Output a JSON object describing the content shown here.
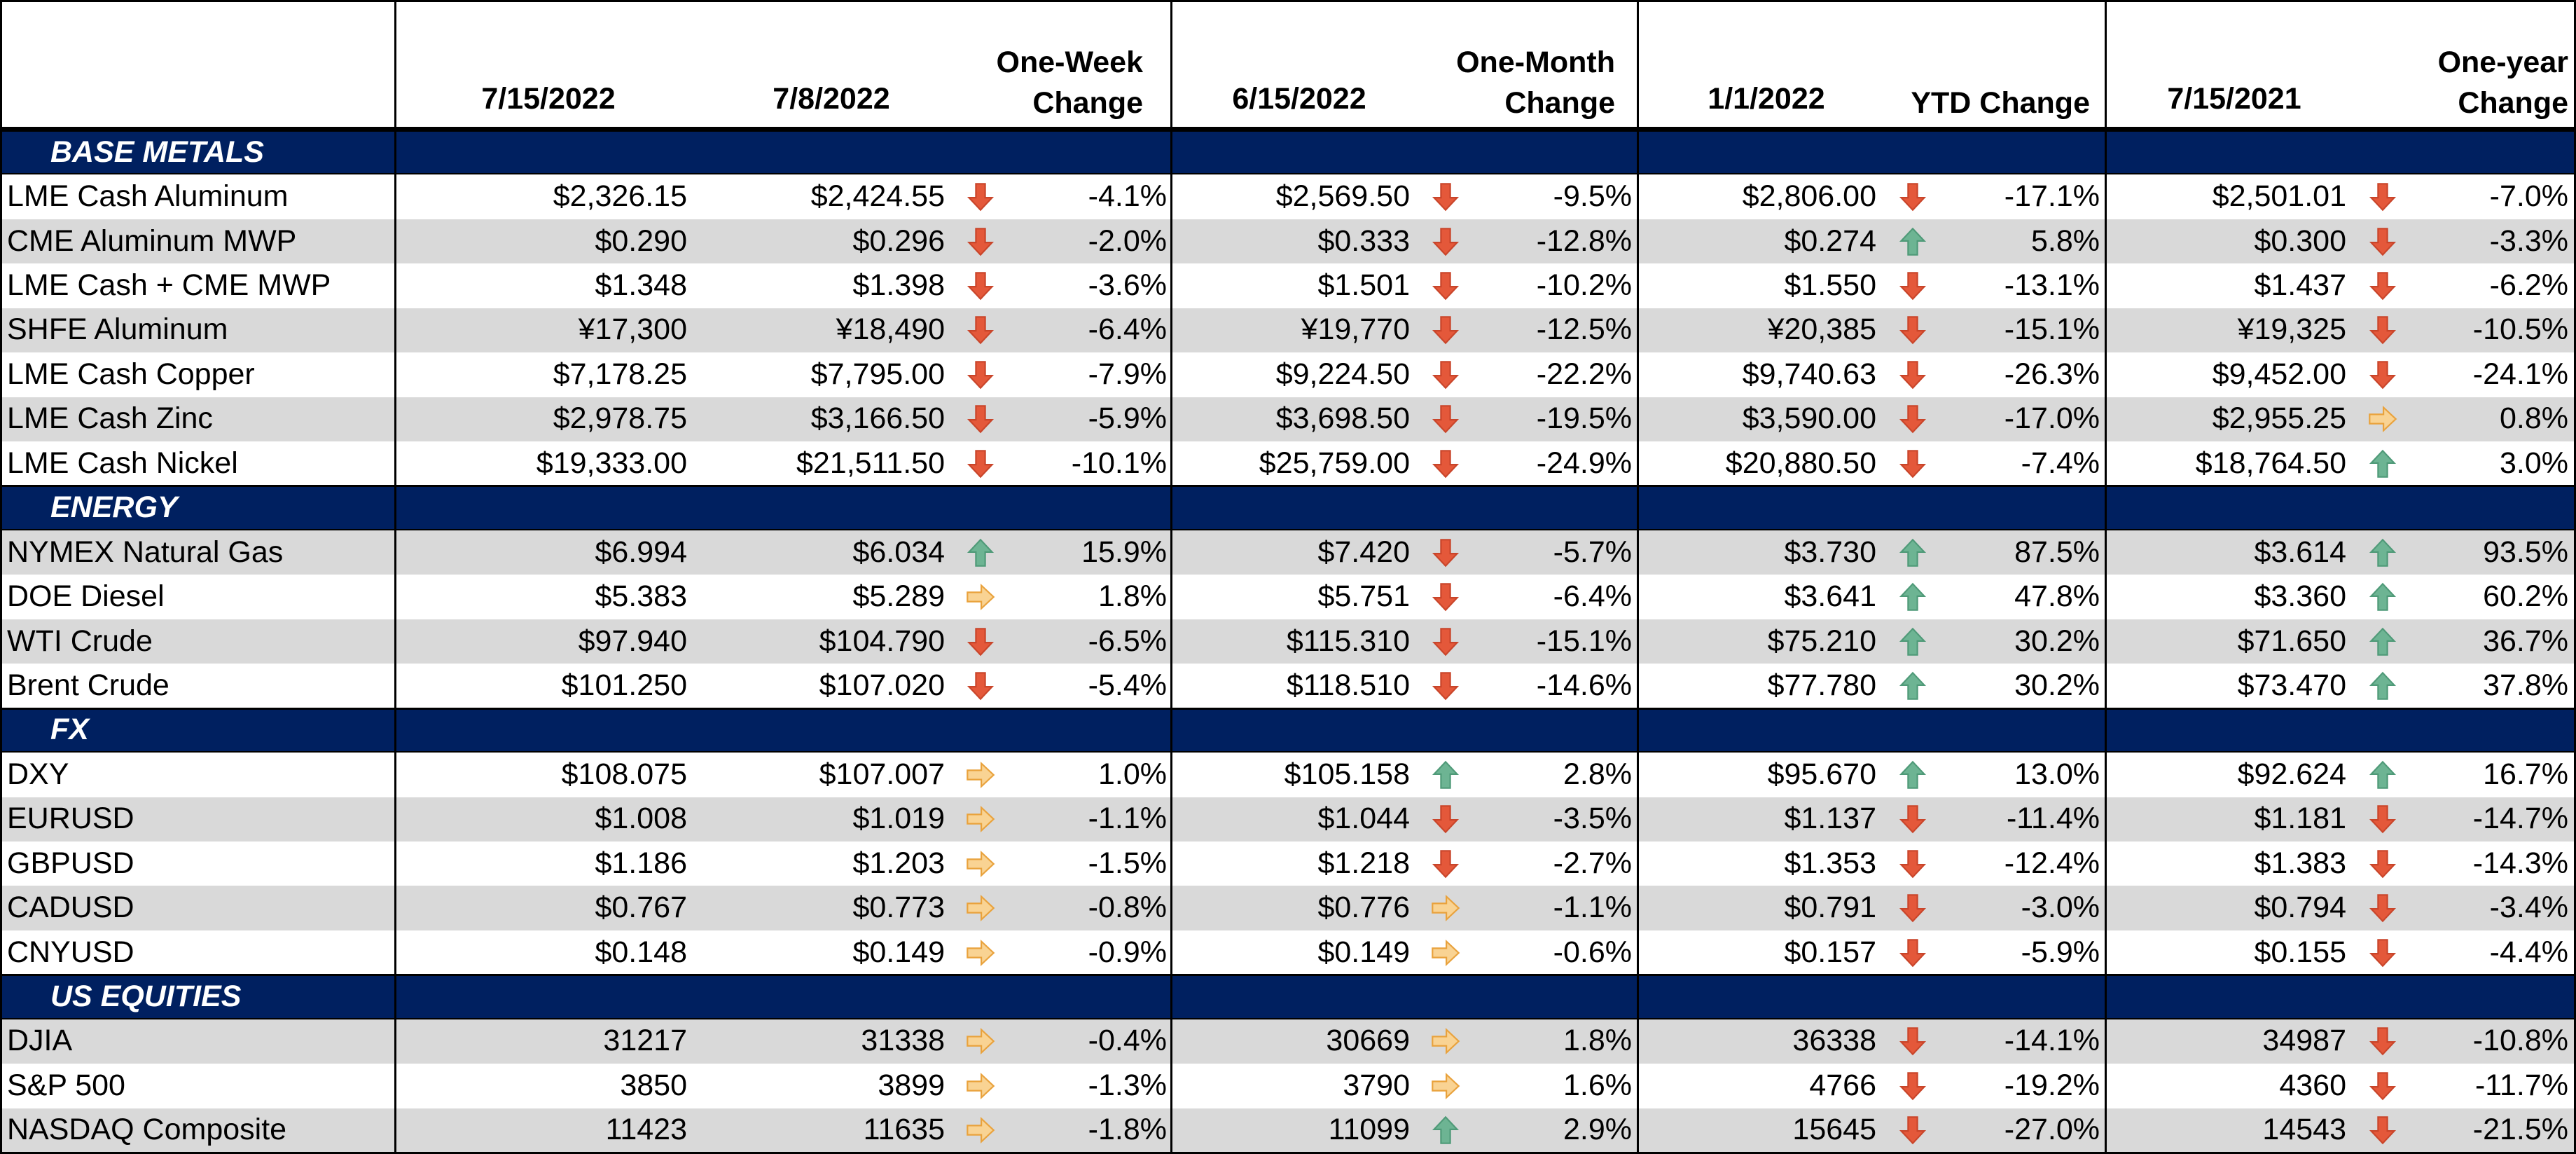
{
  "header": {
    "columns": [
      "7/15/2022",
      "7/8/2022",
      "One-Week\nChange",
      "6/15/2022",
      "One-Month\nChange",
      "1/1/2022",
      "YTD Change",
      "7/15/2021",
      "One-year\nChange"
    ]
  },
  "sections": [
    {
      "title": "BASE METALS",
      "rows": [
        {
          "name": "LME Cash Aluminum",
          "cells": [
            "$2,326.15",
            "$2,424.55",
            "-4.1%",
            "$2,569.50",
            "-9.5%",
            "$2,806.00",
            "-17.1%",
            "$2,501.01",
            "-7.0%"
          ],
          "trends": [
            "down",
            "down",
            "down",
            "down"
          ]
        },
        {
          "name": "CME Aluminum MWP",
          "cells": [
            "$0.290",
            "$0.296",
            "-2.0%",
            "$0.333",
            "-12.8%",
            "$0.274",
            "5.8%",
            "$0.300",
            "-3.3%"
          ],
          "trends": [
            "down",
            "down",
            "up",
            "down"
          ]
        },
        {
          "name": "LME Cash + CME MWP",
          "cells": [
            "$1.348",
            "$1.398",
            "-3.6%",
            "$1.501",
            "-10.2%",
            "$1.550",
            "-13.1%",
            "$1.437",
            "-6.2%"
          ],
          "trends": [
            "down",
            "down",
            "down",
            "down"
          ]
        },
        {
          "name": "SHFE Aluminum",
          "cells": [
            "¥17,300",
            "¥18,490",
            "-6.4%",
            "¥19,770",
            "-12.5%",
            "¥20,385",
            "-15.1%",
            "¥19,325",
            "-10.5%"
          ],
          "trends": [
            "down",
            "down",
            "down",
            "down"
          ]
        },
        {
          "name": "LME Cash Copper",
          "cells": [
            "$7,178.25",
            "$7,795.00",
            "-7.9%",
            "$9,224.50",
            "-22.2%",
            "$9,740.63",
            "-26.3%",
            "$9,452.00",
            "-24.1%"
          ],
          "trends": [
            "down",
            "down",
            "down",
            "down"
          ]
        },
        {
          "name": "LME Cash Zinc",
          "cells": [
            "$2,978.75",
            "$3,166.50",
            "-5.9%",
            "$3,698.50",
            "-19.5%",
            "$3,590.00",
            "-17.0%",
            "$2,955.25",
            "0.8%"
          ],
          "trends": [
            "down",
            "down",
            "down",
            "flat"
          ]
        },
        {
          "name": "LME Cash Nickel",
          "cells": [
            "$19,333.00",
            "$21,511.50",
            "-10.1%",
            "$25,759.00",
            "-24.9%",
            "$20,880.50",
            "-7.4%",
            "$18,764.50",
            "3.0%"
          ],
          "trends": [
            "down",
            "down",
            "down",
            "up"
          ]
        }
      ]
    },
    {
      "title": "ENERGY",
      "rows": [
        {
          "name": "NYMEX Natural Gas",
          "cells": [
            "$6.994",
            "$6.034",
            "15.9%",
            "$7.420",
            "-5.7%",
            "$3.730",
            "87.5%",
            "$3.614",
            "93.5%"
          ],
          "trends": [
            "up",
            "down",
            "up",
            "up"
          ]
        },
        {
          "name": "DOE Diesel",
          "cells": [
            "$5.383",
            "$5.289",
            "1.8%",
            "$5.751",
            "-6.4%",
            "$3.641",
            "47.8%",
            "$3.360",
            "60.2%"
          ],
          "trends": [
            "flat",
            "down",
            "up",
            "up"
          ]
        },
        {
          "name": "WTI Crude",
          "cells": [
            "$97.940",
            "$104.790",
            "-6.5%",
            "$115.310",
            "-15.1%",
            "$75.210",
            "30.2%",
            "$71.650",
            "36.7%"
          ],
          "trends": [
            "down",
            "down",
            "up",
            "up"
          ]
        },
        {
          "name": "Brent Crude",
          "cells": [
            "$101.250",
            "$107.020",
            "-5.4%",
            "$118.510",
            "-14.6%",
            "$77.780",
            "30.2%",
            "$73.470",
            "37.8%"
          ],
          "trends": [
            "down",
            "down",
            "up",
            "up"
          ]
        }
      ]
    },
    {
      "title": "FX",
      "rows": [
        {
          "name": "DXY",
          "cells": [
            "$108.075",
            "$107.007",
            "1.0%",
            "$105.158",
            "2.8%",
            "$95.670",
            "13.0%",
            "$92.624",
            "16.7%"
          ],
          "trends": [
            "flat",
            "up",
            "up",
            "up"
          ]
        },
        {
          "name": "EURUSD",
          "cells": [
            "$1.008",
            "$1.019",
            "-1.1%",
            "$1.044",
            "-3.5%",
            "$1.137",
            "-11.4%",
            "$1.181",
            "-14.7%"
          ],
          "trends": [
            "flat",
            "down",
            "down",
            "down"
          ]
        },
        {
          "name": "GBPUSD",
          "cells": [
            "$1.186",
            "$1.203",
            "-1.5%",
            "$1.218",
            "-2.7%",
            "$1.353",
            "-12.4%",
            "$1.383",
            "-14.3%"
          ],
          "trends": [
            "flat",
            "down",
            "down",
            "down"
          ]
        },
        {
          "name": "CADUSD",
          "cells": [
            "$0.767",
            "$0.773",
            "-0.8%",
            "$0.776",
            "-1.1%",
            "$0.791",
            "-3.0%",
            "$0.794",
            "-3.4%"
          ],
          "trends": [
            "flat",
            "flat",
            "down",
            "down"
          ]
        },
        {
          "name": "CNYUSD",
          "cells": [
            "$0.148",
            "$0.149",
            "-0.9%",
            "$0.149",
            "-0.6%",
            "$0.157",
            "-5.9%",
            "$0.155",
            "-4.4%"
          ],
          "trends": [
            "flat",
            "flat",
            "down",
            "down"
          ]
        }
      ]
    },
    {
      "title": "US EQUITIES",
      "rows": [
        {
          "name": "DJIA",
          "cells": [
            "31217",
            "31338",
            "-0.4%",
            "30669",
            "1.8%",
            "36338",
            "-14.1%",
            "34987",
            "-10.8%"
          ],
          "trends": [
            "flat",
            "flat",
            "down",
            "down"
          ]
        },
        {
          "name": "S&P 500",
          "cells": [
            "3850",
            "3899",
            "-1.3%",
            "3790",
            "1.6%",
            "4766",
            "-19.2%",
            "4360",
            "-11.7%"
          ],
          "trends": [
            "flat",
            "flat",
            "down",
            "down"
          ]
        },
        {
          "name": "NASDAQ Composite",
          "cells": [
            "11423",
            "11635",
            "-1.8%",
            "11099",
            "2.9%",
            "15645",
            "-27.0%",
            "14543",
            "-21.5%"
          ],
          "trends": [
            "flat",
            "up",
            "down",
            "down"
          ]
        }
      ]
    }
  ]
}
